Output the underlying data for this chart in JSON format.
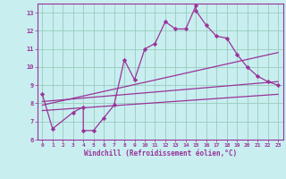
{
  "xlabel": "Windchill (Refroidissement éolien,°C)",
  "bg_color": "#c8eef0",
  "line_color": "#993399",
  "grid_color": "#99ccbb",
  "xlim": [
    -0.5,
    23.5
  ],
  "ylim": [
    6,
    13.5
  ],
  "yticks": [
    6,
    7,
    8,
    9,
    10,
    11,
    12,
    13
  ],
  "xticks": [
    0,
    1,
    2,
    3,
    4,
    5,
    6,
    7,
    8,
    9,
    10,
    11,
    12,
    13,
    14,
    15,
    16,
    17,
    18,
    19,
    20,
    21,
    22,
    23
  ],
  "series1_x": [
    0,
    1,
    3,
    4,
    4,
    5,
    6,
    7,
    8,
    9,
    10,
    11,
    12,
    13,
    14,
    15,
    15,
    16,
    17,
    18,
    19,
    20,
    21,
    22,
    23
  ],
  "series1_y": [
    8.5,
    6.6,
    7.5,
    7.8,
    6.5,
    6.5,
    7.2,
    7.9,
    10.4,
    9.3,
    11.0,
    11.3,
    12.5,
    12.1,
    12.1,
    13.4,
    13.1,
    12.3,
    11.7,
    11.6,
    10.7,
    10.0,
    9.5,
    9.2,
    9.0
  ],
  "series2_x": [
    0,
    23
  ],
  "series2_y": [
    7.9,
    10.8
  ],
  "series3_x": [
    0,
    23
  ],
  "series3_y": [
    7.6,
    8.5
  ],
  "series4_x": [
    0,
    23
  ],
  "series4_y": [
    8.1,
    9.2
  ]
}
